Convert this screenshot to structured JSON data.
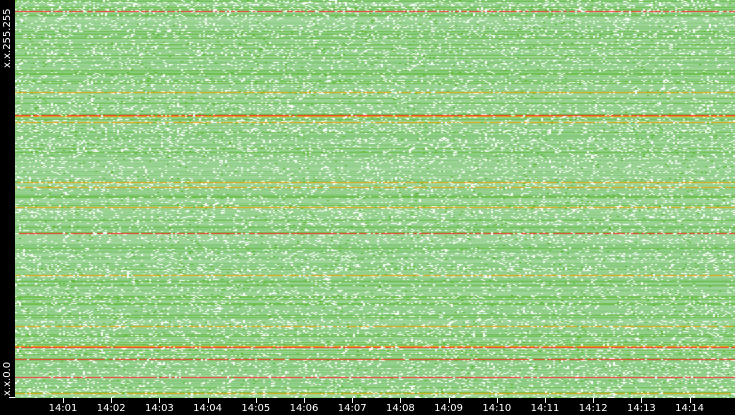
{
  "chart_data": {
    "type": "heatmap",
    "title": "",
    "y_tick_labels": [
      "x.x.255.255",
      "x.x.0.0"
    ],
    "x_tick_labels": [
      "14:01",
      "14:02",
      "14:03",
      "14:04",
      "14:05",
      "14:06",
      "14:07",
      "14:08",
      "14:09",
      "14:10",
      "14:11",
      "14:12",
      "14:13",
      "14:14"
    ],
    "colors": {
      "background": "#000000",
      "low": "#8fce88",
      "mid": "#55b522",
      "high": "#f0a000",
      "max": "#ff2020",
      "empty": "#ffffff"
    }
  }
}
